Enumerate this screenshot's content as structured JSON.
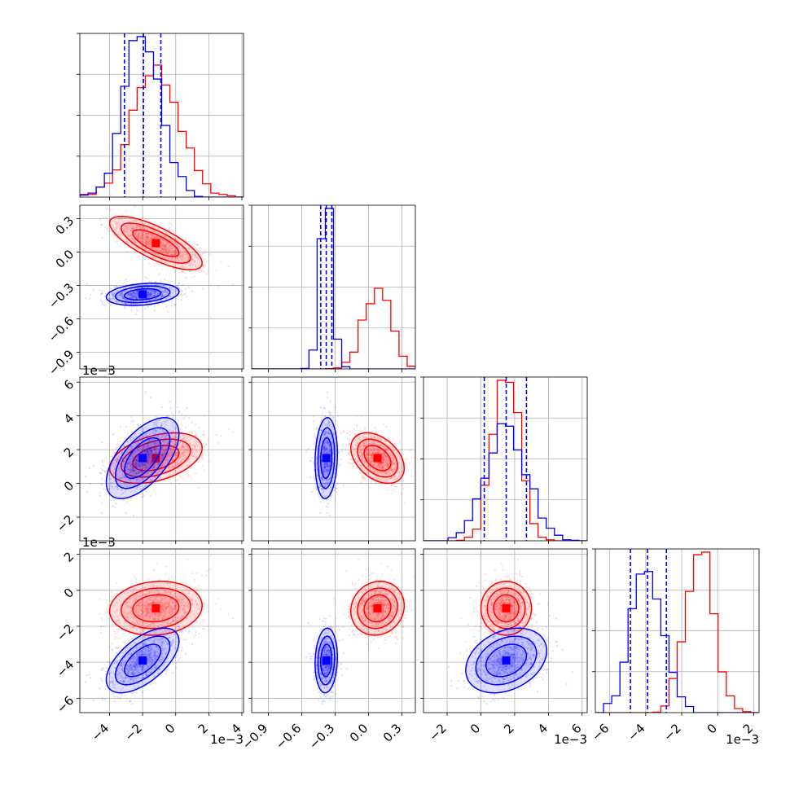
{
  "chart_data": {
    "type": "scatter",
    "subtype": "corner-plot",
    "title": "",
    "grid": true,
    "legend": "none",
    "colors": {
      "red": "#ff0000",
      "blue": "#0000ff"
    },
    "n_params": 4,
    "ranges": [
      [
        -5.8,
        4.1
      ],
      [
        -1.05,
        0.42
      ],
      [
        -3.4,
        6.3
      ],
      [
        -6.8,
        2.3
      ]
    ],
    "ticks": [
      [
        -4,
        -2,
        0,
        2,
        4
      ],
      [
        -0.9,
        -0.6,
        -0.3,
        0.0,
        0.3
      ],
      [
        -2,
        0,
        2,
        4,
        6
      ],
      [
        -6,
        -4,
        -2,
        0,
        2
      ]
    ],
    "tick_labels": [
      [
        "−4",
        "−2",
        "0",
        "2",
        "4"
      ],
      [
        "−0.9",
        "−0.6",
        "−0.3",
        "0.0",
        "0.3"
      ],
      [
        "−2",
        "0",
        "2",
        "4",
        "6"
      ],
      [
        "−6",
        "−4",
        "−2",
        "0",
        "2"
      ]
    ],
    "offset_labels": {
      "x": [
        "1e−3",
        "",
        "1e−3",
        "1e−3"
      ],
      "y": [
        "",
        "",
        "1e−3",
        "1e−3"
      ]
    },
    "series": [
      {
        "color": "red",
        "means": [
          -1.2,
          0.08,
          1.5,
          -1.0
        ],
        "sds": [
          1.4,
          0.12,
          0.75,
          0.75
        ],
        "corr": [
          [
            1.0,
            -0.75,
            0.4,
            0.1
          ],
          [
            -0.75,
            1.0,
            -0.4,
            0.1
          ],
          [
            0.4,
            -0.4,
            1.0,
            0.0
          ],
          [
            0.1,
            0.1,
            0.0,
            1.0
          ]
        ],
        "quantiles": []
      },
      {
        "color": "blue",
        "means": [
          -2.0,
          -0.38,
          1.5,
          -3.9
        ],
        "sds": [
          1.1,
          0.05,
          1.2,
          0.9
        ],
        "corr": [
          [
            1.0,
            0.25,
            0.6,
            0.6
          ],
          [
            0.25,
            1.0,
            0.1,
            0.1
          ],
          [
            0.6,
            0.1,
            1.0,
            0.3
          ],
          [
            0.6,
            0.1,
            0.3,
            1.0
          ]
        ],
        "quantiles": [
          [
            -3.1,
            -1.95,
            -0.9
          ],
          [
            -0.43,
            -0.38,
            -0.33
          ],
          [
            0.2,
            1.5,
            2.7
          ],
          [
            -4.85,
            -3.9,
            -2.85
          ]
        ]
      }
    ]
  }
}
